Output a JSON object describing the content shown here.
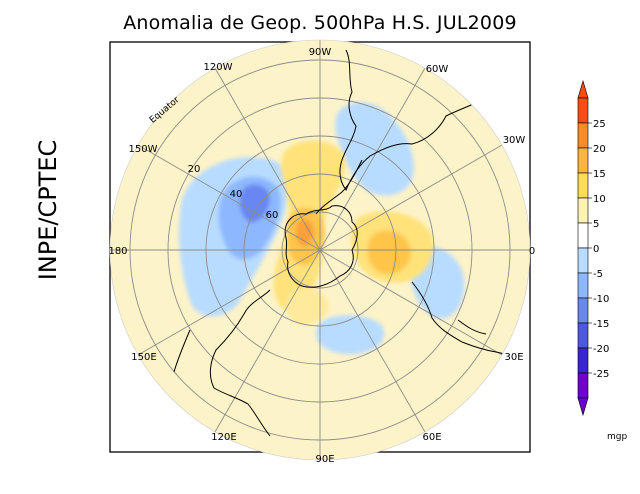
{
  "title": "Anomalia de Geop. 500hPa H.S. JUL2009",
  "institution": "INPE/CPTEC",
  "map": {
    "projection": "south-polar-stereographic",
    "longitude_labels": [
      "90W",
      "60W",
      "30W",
      "0",
      "30E",
      "60E",
      "90E",
      "120E",
      "150E",
      "180",
      "150W",
      "120W"
    ],
    "latitude_labels": [
      "20",
      "40",
      "60"
    ],
    "equator_label": "Equator"
  },
  "colorbar": {
    "unit": "mgp",
    "ticks": [
      "25",
      "20",
      "15",
      "10",
      "5",
      "0",
      "-5",
      "-10",
      "-15",
      "-20",
      "-25"
    ],
    "colors": [
      "#ff4a10",
      "#ff8b22",
      "#ffb73a",
      "#ffdc52",
      "#fff2b5",
      "#ffffff",
      "#b8dcff",
      "#8db8ff",
      "#6987f2",
      "#4c57e8",
      "#3b24d8",
      "#6d00d0"
    ]
  },
  "colors": {
    "positive_light": "#fdf2c4",
    "negative_light": "#b6d6fb"
  }
}
